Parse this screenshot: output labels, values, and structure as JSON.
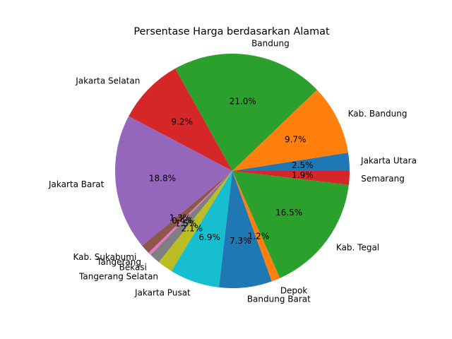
{
  "chart_data": {
    "type": "pie",
    "title": "Persentase Harga berdasarkan Alamat",
    "start_angle_deg": 0,
    "direction": "counterclockwise",
    "slices": [
      {
        "label": "Jakarta Utara",
        "value": 2.5,
        "pct": "2.5%",
        "color": "#1f77b4"
      },
      {
        "label": "Kab. Bandung",
        "value": 9.7,
        "pct": "9.7%",
        "color": "#ff7f0e"
      },
      {
        "label": "Bandung",
        "value": 21.0,
        "pct": "21.0%",
        "color": "#2ca02c"
      },
      {
        "label": "Jakarta Selatan",
        "value": 9.2,
        "pct": "9.2%",
        "color": "#d62728"
      },
      {
        "label": "Jakarta Barat",
        "value": 18.8,
        "pct": "18.8%",
        "color": "#9467bd"
      },
      {
        "label": "Kab. Sukabumi",
        "value": 1.3,
        "pct": "1.3%",
        "color": "#8c564b"
      },
      {
        "label": "Tangerang",
        "value": 0.4,
        "pct": "0.4%",
        "color": "#e377c2"
      },
      {
        "label": "Bekasi",
        "value": 1.5,
        "pct": "1.5%",
        "color": "#7f7f7f"
      },
      {
        "label": "Tangerang Selatan",
        "value": 2.1,
        "pct": "2.1%",
        "color": "#bcbd22"
      },
      {
        "label": "Jakarta Pusat",
        "value": 6.9,
        "pct": "6.9%",
        "color": "#17becf"
      },
      {
        "label": "Bandung Barat",
        "value": 7.3,
        "pct": "7.3%",
        "color": "#1f77b4"
      },
      {
        "label": "Depok",
        "value": 1.2,
        "pct": "1.2%",
        "color": "#ff7f0e"
      },
      {
        "label": "Kab. Tegal",
        "value": 16.5,
        "pct": "16.5%",
        "color": "#2ca02c"
      },
      {
        "label": "Semarang",
        "value": 1.9,
        "pct": "1.9%",
        "color": "#d62728"
      }
    ]
  }
}
